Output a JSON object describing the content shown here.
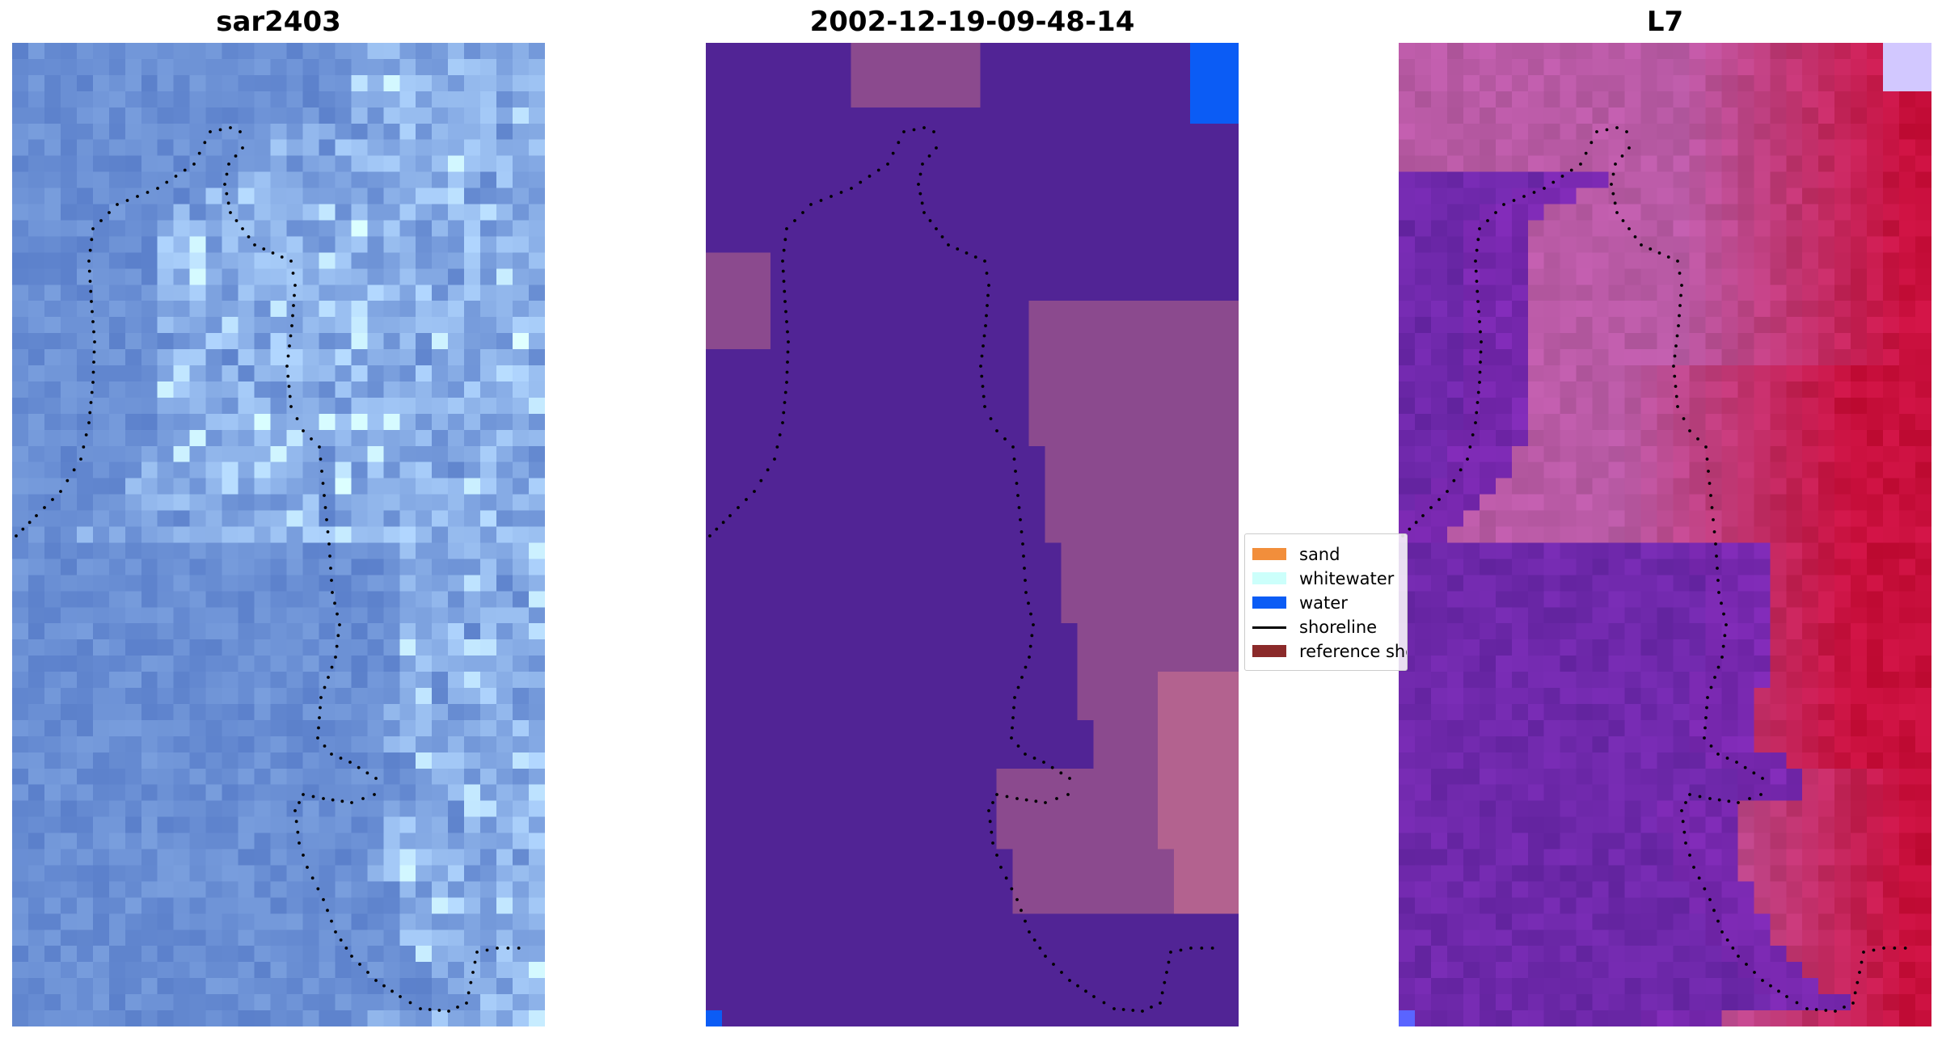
{
  "panels": [
    {
      "id": "rgb",
      "title": "sar2403"
    },
    {
      "id": "classified",
      "title": "2002-12-19-09-48-14"
    },
    {
      "id": "index",
      "title": "L7"
    }
  ],
  "legend": {
    "items": [
      {
        "label": "sand",
        "color": "#f28e3b",
        "kind": "patch"
      },
      {
        "label": "whitewater",
        "color": "#ccfffb",
        "kind": "patch"
      },
      {
        "label": "water",
        "color": "#0b5cf5",
        "kind": "patch"
      },
      {
        "label": "shoreline",
        "color": "#000000",
        "kind": "line"
      },
      {
        "label": "reference shoreline",
        "color": "#8b2a2a",
        "kind": "patch"
      }
    ]
  },
  "colors": {
    "classified_background": "#512495",
    "classified_patch": "#8b4a8e",
    "classified_patch_light": "#b3628f",
    "rgb_base": "#6a8fd4",
    "index_base": "#a33f8f",
    "shoreline_dots": "#000000"
  }
}
